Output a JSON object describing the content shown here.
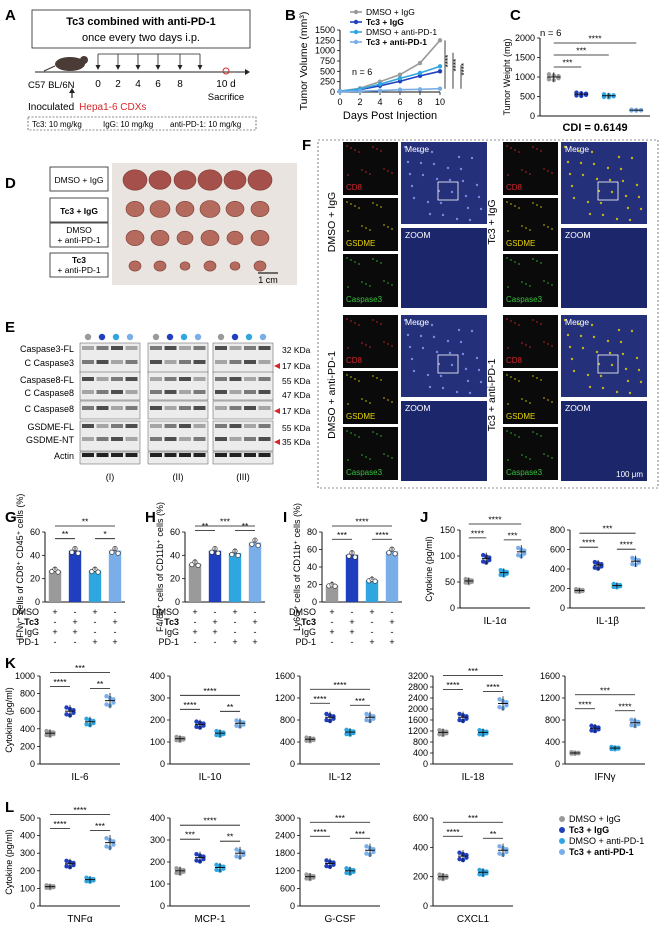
{
  "panel_letters": [
    "A",
    "B",
    "C",
    "D",
    "E",
    "F",
    "G",
    "H",
    "I",
    "J",
    "K",
    "L"
  ],
  "colors": {
    "igg": "#9a9a9a",
    "tc3": "#1f3fbf",
    "pd1": "#2fa6e0",
    "combo": "#7aaee8",
    "red": "#d7262a",
    "axis": "#111111"
  },
  "panel_a": {
    "title_line1": "Tc3 combined with anti-PD-1",
    "title_line2": "once every two days i.p.",
    "mouse_label": "C57 BL/6N",
    "days": [
      "0",
      "2",
      "4",
      "6",
      "8",
      "10 d"
    ],
    "sacrifice": "Sacrifice",
    "inoculated": "Inoculated",
    "model": "Hepa1-6 CDXs",
    "doses": [
      "Tc3: 10 mg/kg",
      "IgG: 10 mg/kg",
      "anti-PD-1: 10 mg/kg"
    ]
  },
  "chart_data": [
    {
      "id": "B",
      "type": "line",
      "title": "",
      "xlabel": "Days Post Injection",
      "ylabel": "Tumor Volume (mm³)",
      "x": [
        0,
        2,
        4,
        6,
        8,
        10
      ],
      "xlim": [
        0,
        10
      ],
      "ylim": [
        0,
        1500
      ],
      "yticks": [
        "0",
        "250",
        "500",
        "750",
        "1000",
        "1250",
        "1500"
      ],
      "xticks": [
        "0",
        "2",
        "4",
        "6",
        "8",
        "10"
      ],
      "annotation": "n = 6",
      "series": [
        {
          "name": "DMSO + IgG",
          "values": [
            20,
            90,
            250,
            420,
            700,
            1250
          ]
        },
        {
          "name": "Tc3 + IgG",
          "values": [
            15,
            60,
            150,
            260,
            390,
            500
          ]
        },
        {
          "name": "DMSO + anti-PD-1",
          "values": [
            20,
            70,
            190,
            330,
            460,
            620
          ]
        },
        {
          "name": "Tc3 + anti-PD-1",
          "values": [
            10,
            20,
            35,
            55,
            65,
            80
          ]
        }
      ],
      "significance": [
        "****",
        "****",
        "****"
      ]
    },
    {
      "id": "C",
      "type": "bar",
      "ylabel": "Tumor Weight (mg)",
      "ylim": [
        0,
        2000
      ],
      "yticks": [
        "0",
        "500",
        "1000",
        "1500",
        "2000"
      ],
      "groups": [
        "DMSO + IgG",
        "Tc3 + IgG",
        "DMSO + anti-PD-1",
        "Tc3 + anti-PD-1"
      ],
      "values": [
        1000,
        560,
        520,
        150
      ],
      "annotation": "n = 6",
      "footer": "CDI = 0.6149",
      "significance": [
        "***",
        "***",
        "****"
      ]
    },
    {
      "id": "G",
      "type": "bar",
      "ylabel": "IFNγ⁺ cells of CD8⁺ CD45⁺ cells (%)",
      "ylim": [
        0,
        60
      ],
      "yticks": [
        "0",
        "20",
        "40",
        "60"
      ],
      "values": [
        27,
        44,
        27,
        44
      ],
      "significance": [
        "**",
        "**",
        "*"
      ]
    },
    {
      "id": "H",
      "type": "bar",
      "ylabel": "F4/80⁺ cells of CD11b⁺ cells (%)",
      "ylim": [
        0,
        60
      ],
      "yticks": [
        "0",
        "20",
        "40",
        "60"
      ],
      "values": [
        33,
        44,
        42,
        51
      ],
      "significance": [
        "**",
        "***",
        "**"
      ]
    },
    {
      "id": "I",
      "type": "bar",
      "ylabel": "Ly6G⁺ cells of CD11b⁺ cells (%)",
      "ylim": [
        0,
        80
      ],
      "yticks": [
        "0",
        "20",
        "40",
        "60",
        "80"
      ],
      "values": [
        19,
        54,
        25,
        58
      ],
      "significance": [
        "***",
        "****",
        "****"
      ]
    },
    {
      "id": "J1",
      "type": "bar",
      "xlabel": "IL-1α",
      "ylabel": "Cytokine (pg/ml)",
      "ylim": [
        0,
        150
      ],
      "yticks": [
        "0",
        "50",
        "100",
        "150"
      ],
      "values": [
        52,
        95,
        68,
        108
      ],
      "significance": [
        "****",
        "****",
        "***"
      ]
    },
    {
      "id": "J2",
      "type": "bar",
      "xlabel": "IL-1β",
      "ylim": [
        0,
        800
      ],
      "yticks": [
        "0",
        "200",
        "400",
        "600",
        "800"
      ],
      "values": [
        180,
        440,
        230,
        480
      ],
      "significance": [
        "****",
        "***",
        "****"
      ]
    },
    {
      "id": "K1",
      "type": "bar",
      "xlabel": "IL-6",
      "ylabel": "Cytokine (pg/ml)",
      "ylim": [
        0,
        1000
      ],
      "yticks": [
        "0",
        "200",
        "400",
        "600",
        "800",
        "1000"
      ],
      "values": [
        350,
        600,
        480,
        720
      ],
      "significance": [
        "****",
        "***",
        "**"
      ]
    },
    {
      "id": "K2",
      "type": "bar",
      "xlabel": "IL-10",
      "ylim": [
        0,
        400
      ],
      "yticks": [
        "0",
        "100",
        "200",
        "300",
        "400"
      ],
      "values": [
        115,
        180,
        140,
        185
      ],
      "significance": [
        "****",
        "****",
        "**"
      ]
    },
    {
      "id": "K3",
      "type": "bar",
      "xlabel": "IL-12",
      "ylim": [
        0,
        1600
      ],
      "yticks": [
        "0",
        "400",
        "800",
        "1200",
        "1600"
      ],
      "values": [
        450,
        850,
        580,
        850
      ],
      "significance": [
        "****",
        "****",
        "***"
      ]
    },
    {
      "id": "K4",
      "type": "bar",
      "xlabel": "IL-18",
      "ylim": [
        0,
        3200
      ],
      "yticks": [
        "0",
        "400",
        "800",
        "1200",
        "1600",
        "2000",
        "2400",
        "2800",
        "3200"
      ],
      "yticks_shown": [
        "0",
        "400",
        "800",
        "1200",
        "1600",
        "2000",
        "2400",
        "2800",
        "3200"
      ],
      "values": [
        1150,
        1700,
        1150,
        2200
      ],
      "significance": [
        "****",
        "***",
        "****"
      ]
    },
    {
      "id": "K5",
      "type": "bar",
      "xlabel": "IFNγ",
      "ylim": [
        0,
        1600
      ],
      "yticks": [
        "0",
        "400",
        "800",
        "1200",
        "1600"
      ],
      "values": [
        200,
        650,
        290,
        750
      ],
      "significance": [
        "****",
        "***",
        "****"
      ]
    },
    {
      "id": "L1",
      "type": "bar",
      "xlabel": "TNFα",
      "ylabel": "Cytokine (pg/ml)",
      "ylim": [
        0,
        500
      ],
      "yticks": [
        "0",
        "100",
        "200",
        "300",
        "400",
        "500"
      ],
      "values": [
        110,
        240,
        150,
        360
      ],
      "significance": [
        "****",
        "****",
        "***"
      ]
    },
    {
      "id": "L2",
      "type": "bar",
      "xlabel": "MCP-1",
      "ylim": [
        0,
        400
      ],
      "yticks": [
        "0",
        "100",
        "200",
        "300",
        "400"
      ],
      "values": [
        160,
        220,
        175,
        240
      ],
      "significance": [
        "***",
        "****",
        "**"
      ]
    },
    {
      "id": "L3",
      "type": "bar",
      "xlabel": "G-CSF",
      "ylim": [
        0,
        3000
      ],
      "yticks": [
        "0",
        "600",
        "1200",
        "1800",
        "2400",
        "3000"
      ],
      "values": [
        1000,
        1450,
        1200,
        1900
      ],
      "significance": [
        "****",
        "***",
        "***"
      ]
    },
    {
      "id": "L4",
      "type": "bar",
      "xlabel": "CXCL1",
      "ylim": [
        0,
        600
      ],
      "yticks": [
        "0",
        "200",
        "400",
        "600"
      ],
      "values": [
        200,
        340,
        230,
        380
      ],
      "significance": [
        "****",
        "***",
        "**"
      ]
    }
  ],
  "panel_d": {
    "groups": [
      "DMSO + IgG",
      "Tc3 + IgG",
      "DMSO\n+ anti-PD-1",
      "Tc3\n+ anti-PD-1"
    ],
    "labels": [
      "DMSO + IgG",
      "Tc3 + IgG",
      "DMSO",
      "+ anti-PD-1",
      "Tc3",
      "+ anti-PD-1"
    ],
    "scale": "1 cm"
  },
  "panel_e": {
    "rows": [
      "Caspase3-FL",
      "C Caspase3",
      "Caspase8-FL",
      "C Caspase8",
      "C Caspase8",
      "GSDME-FL",
      "GSDME-NT",
      "Actin"
    ],
    "sizes": [
      "32 KDa",
      "17 KDa",
      "55 KDa",
      "47 KDa",
      "17 KDa",
      "55 KDa",
      "35 KDa"
    ],
    "blots": [
      "(I)",
      "(II)",
      "(III)"
    ]
  },
  "panel_f": {
    "groups": [
      "DMSO + IgG",
      "Tc3 + IgG",
      "DMSO + anti-PD-1",
      "Tc3 + anti-PD-1"
    ],
    "channels": [
      "CD8",
      "GSDME",
      "Caspase3"
    ],
    "merge": "Merge",
    "zoom": "ZOOM",
    "scale": "100 μm"
  },
  "group_matrix": {
    "rows": [
      "DMSO",
      "Tc3",
      "IgG",
      "PD-1"
    ],
    "signs": [
      [
        "+",
        "-",
        "+",
        "-"
      ],
      [
        "-",
        "+",
        "-",
        "+"
      ],
      [
        "+",
        "+",
        "-",
        "-"
      ],
      [
        "-",
        "-",
        "+",
        "+"
      ]
    ]
  },
  "legend": [
    "DMSO + IgG",
    "Tc3 + IgG",
    "DMSO + anti-PD-1",
    "Tc3 + anti-PD-1"
  ]
}
